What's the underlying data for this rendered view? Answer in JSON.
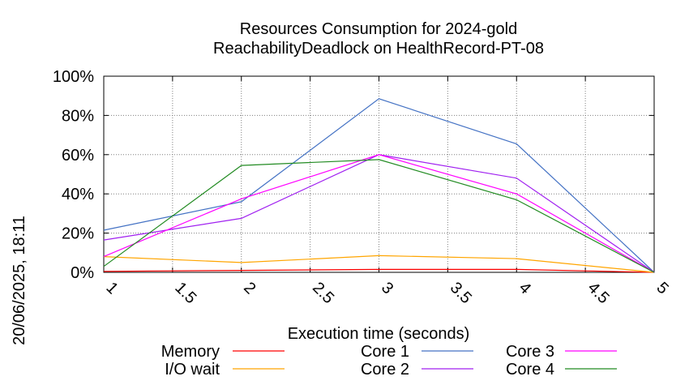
{
  "chart_data": {
    "type": "line",
    "title": "Resources Consumption for 2024-gold",
    "subtitle": "ReachabilityDeadlock on HealthRecord-PT-08",
    "xlabel": "Execution time (seconds)",
    "ylabel": "",
    "side_label": "20/06/2025, 18:11",
    "xlim": [
      1,
      5
    ],
    "ylim": [
      0,
      100
    ],
    "x_ticks": [
      "1",
      "1.5",
      "2",
      "2.5",
      "3",
      "3.5",
      "4",
      "4.5",
      "5"
    ],
    "y_ticks": [
      "0%",
      "20%",
      "40%",
      "60%",
      "80%",
      "100%"
    ],
    "grid": true,
    "legend_placement": "bottom",
    "x": [
      1,
      2,
      3,
      4,
      5
    ],
    "series": [
      {
        "name": "Memory",
        "color": "#ff0000",
        "values": [
          0.5,
          1,
          1.5,
          1.5,
          0
        ]
      },
      {
        "name": "I/O wait",
        "color": "#ffa500",
        "values": [
          8,
          5,
          8.5,
          7,
          0
        ]
      },
      {
        "name": "Core 1",
        "color": "#4472c4",
        "values": [
          21.5,
          36,
          88.5,
          65.5,
          0
        ]
      },
      {
        "name": "Core 2",
        "color": "#a020f0",
        "values": [
          16.5,
          27.5,
          60,
          48,
          0
        ]
      },
      {
        "name": "Core 3",
        "color": "#ff00ff",
        "values": [
          8,
          37.5,
          60,
          40,
          0
        ]
      },
      {
        "name": "Core 4",
        "color": "#228b22",
        "values": [
          3,
          54.5,
          57.5,
          37,
          0
        ]
      }
    ]
  }
}
